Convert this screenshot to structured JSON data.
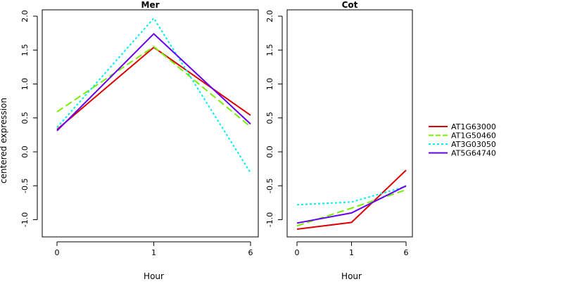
{
  "chart_data": {
    "type": "line",
    "ylabel": "centered expression",
    "xlabel": "Hour",
    "x_ticks": [
      "0",
      "1",
      "6"
    ],
    "y_ticks": [
      "-1.0",
      "-0.5",
      "0.0",
      "0.5",
      "1.0",
      "1.5",
      "2.0"
    ],
    "ylim": [
      -1.25,
      2.05
    ],
    "legend_position": "right",
    "series_styles": [
      {
        "name": "AT1G63000",
        "color": "#dd0000",
        "dash": "solid"
      },
      {
        "name": "AT1G50460",
        "color": "#77ee00",
        "dash": "dashed"
      },
      {
        "name": "AT3G03050",
        "color": "#00eeee",
        "dash": "dotted"
      },
      {
        "name": "AT5G64740",
        "color": "#6600ee",
        "dash": "solid"
      }
    ],
    "panels": [
      {
        "title": "Mer",
        "series": [
          {
            "name": "AT1G63000",
            "values": [
              0.33,
              1.54,
              0.54
            ]
          },
          {
            "name": "AT1G50460",
            "values": [
              0.59,
              1.55,
              0.37
            ]
          },
          {
            "name": "AT3G03050",
            "values": [
              0.36,
              1.97,
              -0.31
            ]
          },
          {
            "name": "AT5G64740",
            "values": [
              0.31,
              1.74,
              0.41
            ]
          }
        ]
      },
      {
        "title": "Cot",
        "series": [
          {
            "name": "AT1G63000",
            "values": [
              -1.14,
              -1.04,
              -0.27
            ]
          },
          {
            "name": "AT1G50460",
            "values": [
              -1.09,
              -0.83,
              -0.56
            ]
          },
          {
            "name": "AT3G03050",
            "values": [
              -0.78,
              -0.74,
              -0.51
            ]
          },
          {
            "name": "AT5G64740",
            "values": [
              -1.05,
              -0.9,
              -0.5
            ]
          }
        ]
      }
    ]
  }
}
